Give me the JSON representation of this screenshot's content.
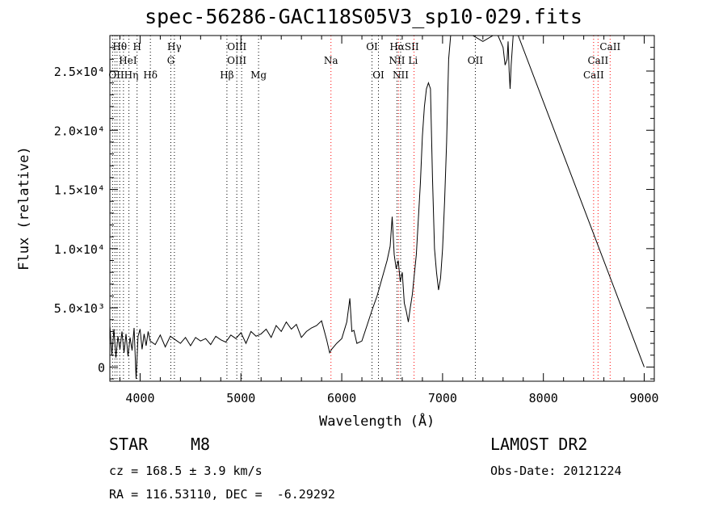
{
  "header": {
    "title": "spec-56286-GAC118S05V3_sp10-029.fits"
  },
  "info": {
    "class_label": "STAR",
    "subclass": "M8",
    "survey": "LAMOST DR2",
    "cz": "cz = 168.5 ± 3.9 km/s",
    "obs_date": "Obs-Date: 20121224",
    "radec": "RA = 116.53110, DEC =  -6.29292"
  },
  "chart_data": {
    "type": "line",
    "xlabel": "Wavelength (Å)",
    "ylabel": "Flux (relative)",
    "xlim": [
      3700,
      9100
    ],
    "ylim": [
      -1200,
      28000
    ],
    "xticks": [
      4000,
      5000,
      6000,
      7000,
      8000,
      9000
    ],
    "yticks": [
      {
        "value": 0,
        "label": "0"
      },
      {
        "value": 5000,
        "label": "5.0×10³"
      },
      {
        "value": 10000,
        "label": "1.0×10⁴"
      },
      {
        "value": 15000,
        "label": "1.5×10⁴"
      },
      {
        "value": 20000,
        "label": "2.0×10⁴"
      },
      {
        "value": 25000,
        "label": "2.5×10⁴"
      }
    ],
    "series": [
      {
        "x": [
          3700,
          3720,
          3740,
          3760,
          3780,
          3800,
          3820,
          3840,
          3860,
          3880,
          3900,
          3920,
          3940,
          3960,
          3980,
          4000,
          4020,
          4040,
          4060,
          4080,
          4100,
          4150,
          4200,
          4250,
          4300,
          4350,
          4400,
          4450,
          4500,
          4550,
          4600,
          4650,
          4700,
          4750,
          4800,
          4850,
          4900,
          4950,
          5000,
          5050,
          5100,
          5150,
          5200,
          5250,
          5300,
          5350,
          5400,
          5450,
          5500,
          5550,
          5600,
          5650,
          5700,
          5750,
          5800,
          5850,
          5880,
          5900,
          5950,
          6000,
          6050,
          6080,
          6100,
          6120,
          6150,
          6200,
          6250,
          6300,
          6350,
          6400,
          6450,
          6480,
          6500,
          6520,
          6540,
          6560,
          6580,
          6600,
          6620,
          6640,
          6660,
          6680,
          6700,
          6720,
          6740,
          6760,
          6780,
          6800,
          6820,
          6840,
          6860,
          6880,
          6900,
          6920,
          6940,
          6960,
          6980,
          7000,
          7020,
          7040,
          7060,
          7080,
          7100,
          7120,
          7140,
          7160,
          7180,
          7200,
          7220,
          7240,
          7260,
          7280,
          7300,
          7400,
          7500,
          7550,
          7600,
          7620,
          7640,
          7650,
          7660,
          7670,
          7680,
          7700,
          7750,
          9000
        ],
        "y": [
          3500,
          1000,
          3200,
          800,
          2600,
          1500,
          3000,
          1200,
          2800,
          900,
          2500,
          1400,
          3300,
          -1000,
          2600,
          3200,
          1500,
          2800,
          1800,
          3000,
          2200,
          1900,
          2700,
          1700,
          2600,
          2300,
          2000,
          2500,
          1800,
          2500,
          2200,
          2400,
          1900,
          2600,
          2300,
          2100,
          2700,
          2400,
          2900,
          2000,
          3000,
          2600,
          2800,
          3200,
          2500,
          3500,
          3000,
          3800,
          3200,
          3600,
          2500,
          3000,
          3300,
          3500,
          3900,
          2300,
          1200,
          1500,
          2000,
          2400,
          3800,
          5800,
          3000,
          3100,
          2000,
          2200,
          3500,
          4800,
          6000,
          7500,
          9000,
          10200,
          12700,
          9500,
          8300,
          9000,
          7200,
          8000,
          5400,
          4700,
          3800,
          5000,
          6100,
          7800,
          9500,
          12500,
          15500,
          19500,
          22000,
          23500,
          24000,
          23500,
          16000,
          10000,
          8000,
          6500,
          7500,
          10000,
          14000,
          19000,
          26000,
          28000,
          28000,
          28000,
          28000,
          28000,
          28000,
          28000,
          28000,
          28000,
          28000,
          28000,
          28000,
          27500,
          28000,
          28000,
          27000,
          25500,
          26000,
          27500,
          25000,
          23500,
          25500,
          28000,
          28000,
          0
        ]
      }
    ],
    "line_labels": [
      {
        "text": "Hθ",
        "wl": 3798,
        "row": 0
      },
      {
        "text": "H",
        "wl": 3970,
        "row": 0
      },
      {
        "text": "Hγ",
        "wl": 4340,
        "row": 0
      },
      {
        "text": "OIII",
        "wl": 4960,
        "row": 0
      },
      {
        "text": "OI",
        "wl": 6300,
        "row": 0
      },
      {
        "text": "HαSII",
        "wl": 6620,
        "row": 0
      },
      {
        "text": "CaII",
        "wl": 8662,
        "row": 0
      },
      {
        "text": "HeI",
        "wl": 3880,
        "row": 1
      },
      {
        "text": "G",
        "wl": 4305,
        "row": 1
      },
      {
        "text": "OIII",
        "wl": 4959,
        "row": 1
      },
      {
        "text": "Na",
        "wl": 5893,
        "row": 1
      },
      {
        "text": "NII",
        "wl": 6548,
        "row": 1
      },
      {
        "text": "Li",
        "wl": 6707,
        "row": 1
      },
      {
        "text": "OII",
        "wl": 7325,
        "row": 1
      },
      {
        "text": "CaII",
        "wl": 8542,
        "row": 1
      },
      {
        "text": "OIIHη",
        "wl": 3835,
        "row": 2
      },
      {
        "text": "Hδ",
        "wl": 4102,
        "row": 2
      },
      {
        "text": "Hβ",
        "wl": 4861,
        "row": 2
      },
      {
        "text": "Mg",
        "wl": 5175,
        "row": 2
      },
      {
        "text": "OI",
        "wl": 6364,
        "row": 2
      },
      {
        "text": "NII",
        "wl": 6584,
        "row": 2
      },
      {
        "text": "CaII",
        "wl": 8498,
        "row": 2
      }
    ],
    "marker_lines": [
      {
        "wl": 3727,
        "color": "#000000"
      },
      {
        "wl": 3750,
        "color": "#000000"
      },
      {
        "wl": 3771,
        "color": "#000000"
      },
      {
        "wl": 3798,
        "color": "#000000"
      },
      {
        "wl": 3835,
        "color": "#000000"
      },
      {
        "wl": 3889,
        "color": "#000000"
      },
      {
        "wl": 3970,
        "color": "#000000"
      },
      {
        "wl": 4102,
        "color": "#000000"
      },
      {
        "wl": 4305,
        "color": "#000000"
      },
      {
        "wl": 4340,
        "color": "#000000"
      },
      {
        "wl": 4861,
        "color": "#000000"
      },
      {
        "wl": 4959,
        "color": "#000000"
      },
      {
        "wl": 5007,
        "color": "#000000"
      },
      {
        "wl": 5175,
        "color": "#000000"
      },
      {
        "wl": 5893,
        "color": "#ff0000"
      },
      {
        "wl": 6300,
        "color": "#000000"
      },
      {
        "wl": 6364,
        "color": "#000000"
      },
      {
        "wl": 6548,
        "color": "#000000"
      },
      {
        "wl": 6563,
        "color": "#ff0000"
      },
      {
        "wl": 6584,
        "color": "#000000"
      },
      {
        "wl": 6717,
        "color": "#ff0000"
      },
      {
        "wl": 7325,
        "color": "#000000"
      },
      {
        "wl": 8498,
        "color": "#ff0000"
      },
      {
        "wl": 8542,
        "color": "#ff0000"
      },
      {
        "wl": 8662,
        "color": "#ff0000"
      }
    ]
  }
}
